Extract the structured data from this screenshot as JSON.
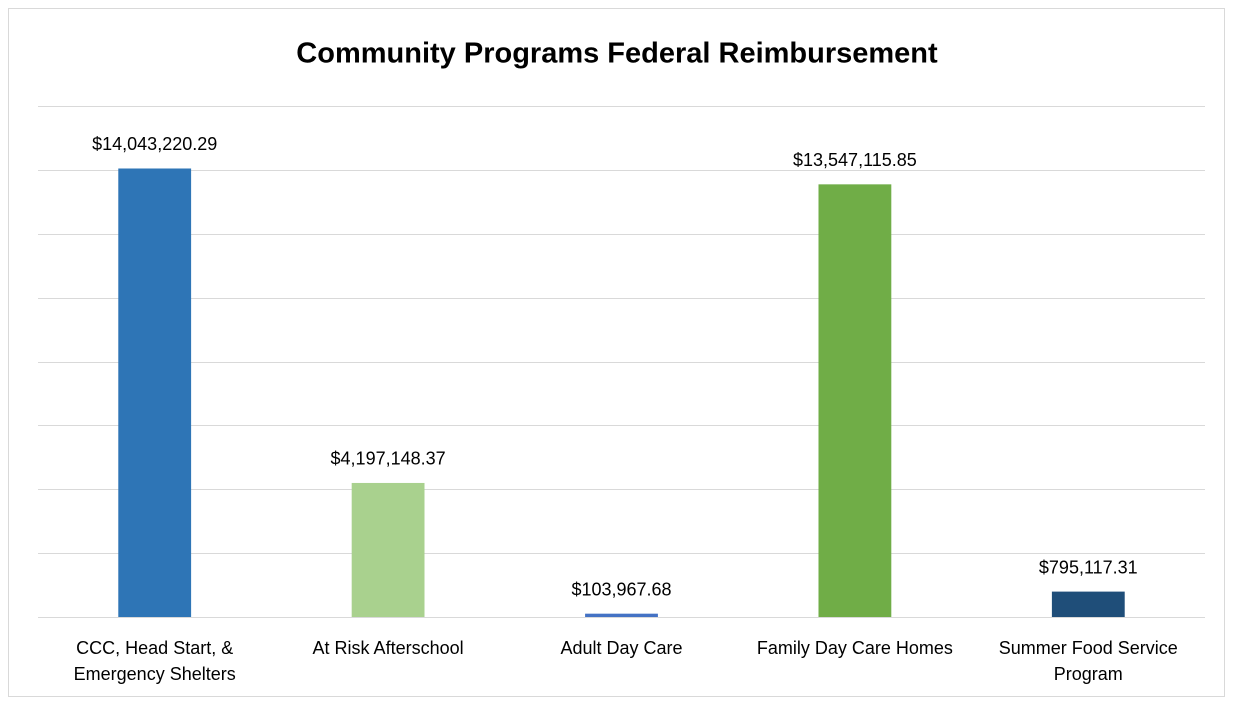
{
  "chart_data": {
    "type": "bar",
    "title": "Community Programs Federal Reimbursement",
    "categories": [
      "CCC, Head Start, & Emergency Shelters",
      "At Risk Afterschool",
      "Adult Day Care",
      "Family Day Care Homes",
      "Summer Food Service Program"
    ],
    "values": [
      14043220.29,
      4197148.37,
      103967.68,
      13547115.85,
      795117.31
    ],
    "value_labels": [
      "$14,043,220.29",
      "$4,197,148.37",
      "$103,967.68",
      "$13,547,115.85",
      "$795,117.31"
    ],
    "colors": [
      "#2e75b6",
      "#a9d18e",
      "#4472c4",
      "#70ad47",
      "#1f4e79"
    ],
    "ylim": [
      0,
      16000000
    ],
    "yticks": [
      0,
      2000000,
      4000000,
      6000000,
      8000000,
      10000000,
      12000000,
      14000000,
      16000000
    ],
    "grid": true
  }
}
